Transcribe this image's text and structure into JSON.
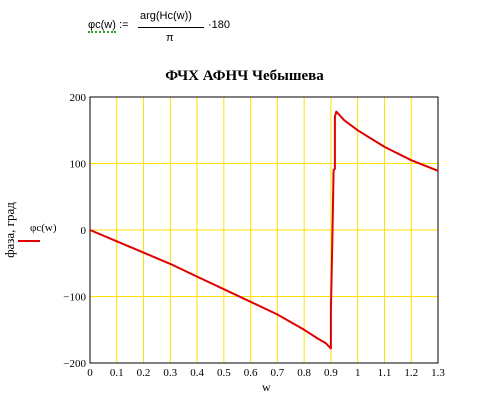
{
  "formula": {
    "lhs_name": "φc(w)",
    "assign": ":=",
    "numerator": "arg(Hc(w))",
    "denominator": "π",
    "multiplier": "·180"
  },
  "chart_data": {
    "type": "line",
    "title": "ФЧХ АФНЧ Чебышева",
    "xlabel": "w",
    "ylabel": "фаза, град",
    "xlim": [
      0,
      1.3
    ],
    "ylim": [
      -200,
      200
    ],
    "x_ticks": [
      "0",
      "0.1",
      "0.2",
      "0.3",
      "0.4",
      "0.5",
      "0.6",
      "0.7",
      "0.8",
      "0.9",
      "1",
      "1.1",
      "1.2",
      "1.3"
    ],
    "y_ticks": [
      "200",
      "100",
      "0",
      "−100",
      "−200"
    ],
    "grid": true,
    "legend": "left",
    "series": [
      {
        "name": "φc(w)",
        "color": "#e00000",
        "x": [
          0,
          0.1,
          0.2,
          0.3,
          0.4,
          0.5,
          0.6,
          0.7,
          0.8,
          0.85,
          0.88,
          0.9,
          0.9,
          0.905,
          0.91,
          0.915,
          0.915,
          0.92,
          0.95,
          1.0,
          1.1,
          1.2,
          1.3
        ],
        "y": [
          0,
          -17,
          -34,
          -51,
          -70,
          -89,
          -108,
          -127,
          -150,
          -163,
          -170,
          -178,
          -118,
          -20,
          90,
          92,
          170,
          178,
          165,
          150,
          125,
          105,
          89
        ]
      }
    ]
  }
}
